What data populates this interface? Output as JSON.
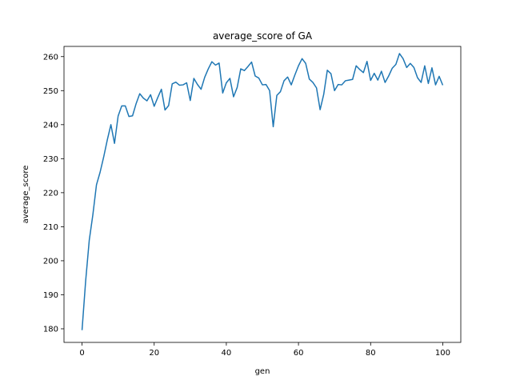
{
  "chart_data": {
    "type": "line",
    "title": "average_score of GA",
    "xlabel": "gen",
    "ylabel": "average_score",
    "xlim": [
      -5,
      105
    ],
    "ylim": [
      176,
      263
    ],
    "xticks": [
      0,
      20,
      40,
      60,
      80,
      100
    ],
    "yticks": [
      180,
      190,
      200,
      210,
      220,
      230,
      240,
      250,
      260
    ],
    "grid": false,
    "line_color": "#1f77b4",
    "series": [
      {
        "x": [
          0,
          1,
          2,
          3,
          4,
          5,
          6,
          7,
          8,
          9,
          10,
          11,
          12,
          13,
          14,
          15,
          16,
          17,
          18,
          19,
          20,
          21,
          22,
          23,
          24,
          25,
          26,
          27,
          28,
          29,
          30,
          31,
          32,
          33,
          34,
          35,
          36,
          37,
          38,
          39,
          40,
          41,
          42,
          43,
          44,
          45,
          46,
          47,
          48,
          49,
          50,
          51,
          52,
          53,
          54,
          55,
          56,
          57,
          58,
          59,
          60,
          61,
          62,
          63,
          64,
          65,
          66,
          67,
          68,
          69,
          70,
          71,
          72,
          73,
          74,
          75,
          76,
          77,
          78,
          79,
          80,
          81,
          82,
          83,
          84,
          85,
          86,
          87,
          88,
          89,
          90,
          91,
          92,
          93,
          94,
          95,
          96,
          97,
          98,
          99,
          100
        ],
        "values": [
          179.6,
          194.0,
          206.0,
          213.5,
          222.3,
          226.0,
          230.5,
          235.5,
          240.0,
          234.5,
          242.5,
          245.5,
          245.5,
          242.4,
          242.6,
          246.2,
          249.1,
          247.8,
          247.0,
          248.8,
          245.4,
          248.0,
          250.4,
          244.3,
          245.6,
          252.0,
          252.5,
          251.6,
          251.7,
          252.3,
          247.1,
          253.6,
          251.8,
          250.4,
          253.9,
          256.4,
          258.5,
          257.5,
          258.1,
          249.3,
          252.3,
          253.6,
          248.2,
          250.9,
          256.4,
          255.9,
          257.1,
          258.4,
          254.3,
          253.7,
          251.7,
          251.8,
          250.0,
          239.4,
          248.6,
          249.7,
          252.9,
          254.0,
          251.7,
          254.6,
          257.3,
          259.4,
          258.0,
          253.4,
          252.4,
          250.8,
          244.4,
          248.9,
          256.0,
          255.0,
          250.0,
          251.8,
          251.7,
          252.9,
          253.1,
          253.3,
          257.3,
          256.2,
          255.3,
          258.6,
          253.0,
          255.1,
          253.1,
          255.7,
          252.4,
          254.3,
          256.6,
          257.7,
          260.9,
          259.4,
          256.8,
          258.0,
          256.8,
          253.8,
          252.4,
          257.3,
          252.1,
          256.7,
          251.7,
          254.2,
          251.6
        ]
      }
    ]
  }
}
